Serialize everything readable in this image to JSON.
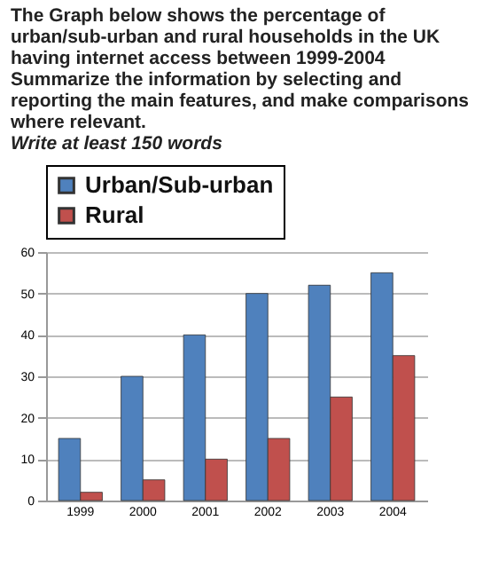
{
  "chart_data": {
    "type": "bar",
    "title": "The Graph below shows the percentage of urban/sub-urban and rural households in the UK having internet access between 1999-2004",
    "subtitle": "Summarize the information by selecting and reporting the main features, and make comparisons where relevant.",
    "annotations": [
      "Write at least 150 words"
    ],
    "categories": [
      "1999",
      "2000",
      "2001",
      "2002",
      "2003",
      "2004"
    ],
    "series": [
      {
        "name": "Urban/Sub-urban",
        "color": "#4f81bd",
        "values": [
          15,
          30,
          40,
          50,
          52,
          55
        ]
      },
      {
        "name": "Rural",
        "color": "#c0504d",
        "values": [
          2,
          5,
          10,
          15,
          25,
          35
        ]
      }
    ],
    "ylim": [
      0,
      60
    ],
    "yticks": [
      0,
      10,
      20,
      30,
      40,
      50,
      60
    ],
    "grid": "y",
    "legend": "top left"
  }
}
